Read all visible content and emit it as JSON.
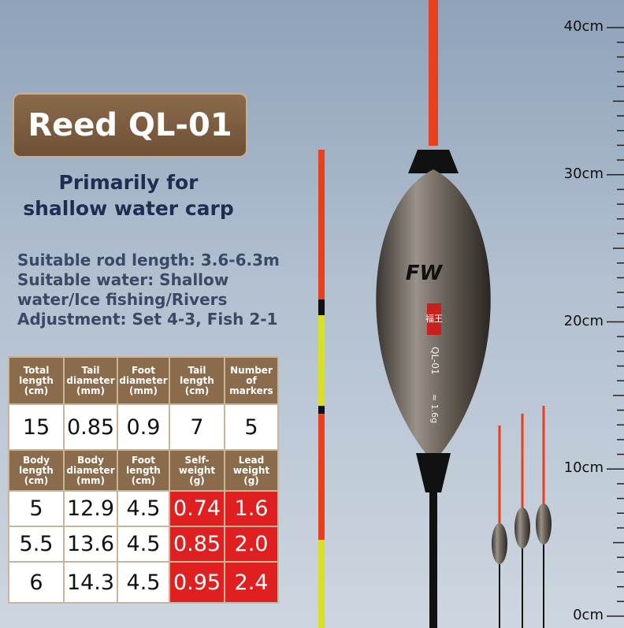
{
  "title": "Reed QL-01",
  "subtitle": [
    "Primarily for",
    "shallow water carp"
  ],
  "specs": [
    "Suitable rod length: 3.6-6.3m",
    "Suitable water: Shallow",
    "water/Ice fishing/Rivers",
    "Adjustment: Set 4-3, Fish 2-1"
  ],
  "float_labels": {
    "brand": "FW",
    "badge": "福王",
    "model": "QL-01",
    "weight": "≈ 1.6g"
  },
  "ruler": [
    "40cm",
    "30cm",
    "20cm",
    "10cm",
    "0cm"
  ],
  "table": {
    "header1": [
      "Total length (cm)",
      "Tail diameter (mm)",
      "Foot diameter (mm)",
      "Tail length (cm)",
      "Number of markers"
    ],
    "row1": [
      "15",
      "0.85",
      "0.9",
      "7",
      "5"
    ],
    "header2": [
      "Body length (cm)",
      "Body diameter (mm)",
      "Foot length (cm)",
      "Self-weight (g)",
      "Lead weight (g)"
    ],
    "rows": [
      [
        "5",
        "12.9",
        "4.5",
        "0.74",
        "1.6"
      ],
      [
        "5.5",
        "13.6",
        "4.5",
        "0.85",
        "2.0"
      ],
      [
        "6",
        "14.3",
        "4.5",
        "0.95",
        "2.4"
      ]
    ]
  }
}
